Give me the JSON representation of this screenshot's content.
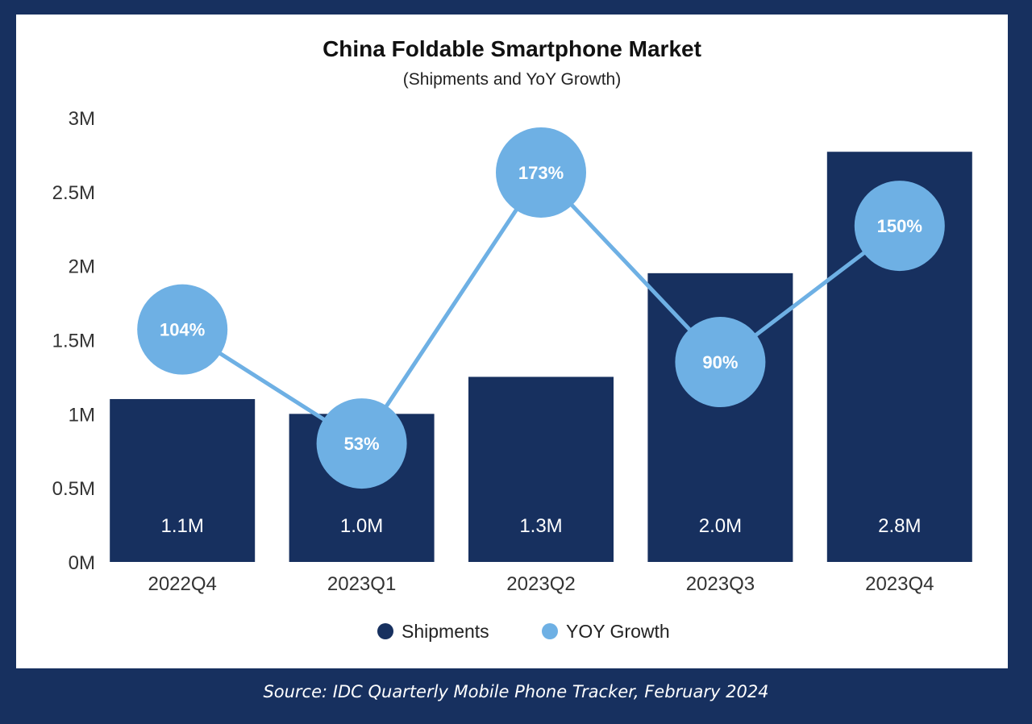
{
  "chart_data": {
    "type": "bar+line",
    "title": "China Foldable Smartphone Market",
    "subtitle": "(Shipments and YoY Growth)",
    "categories": [
      "2022Q4",
      "2023Q1",
      "2023Q2",
      "2023Q3",
      "2023Q4"
    ],
    "y_ticks": [
      "0M",
      "0.5M",
      "1M",
      "1.5M",
      "2M",
      "2.5M",
      "3M"
    ],
    "ylim": [
      0,
      3
    ],
    "ylabel_unit": "M",
    "series": [
      {
        "name": "Shipments",
        "type": "bar",
        "values": [
          1.1,
          1.0,
          1.25,
          1.95,
          2.77
        ],
        "labels": [
          "1.1M",
          "1.0M",
          "1.3M",
          "2.0M",
          "2.8M"
        ],
        "color": "#17305f"
      },
      {
        "name": "YOY Growth",
        "type": "line",
        "values": [
          104,
          53,
          173,
          90,
          150
        ],
        "labels": [
          "104%",
          "53%",
          "173%",
          "90%",
          "150%"
        ],
        "plot_positions_in_M": [
          1.57,
          0.8,
          2.63,
          1.35,
          2.27
        ],
        "color": "#6eb0e4"
      }
    ],
    "legend": [
      "Shipments",
      "YOY Growth"
    ],
    "legend_position": "bottom-center"
  },
  "source": "Source: IDC Quarterly Mobile Phone Tracker, February 2024"
}
